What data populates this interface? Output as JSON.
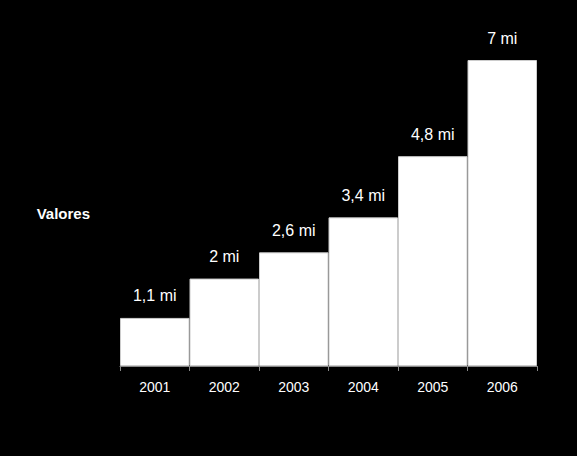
{
  "chart_data": {
    "type": "bar",
    "ylabel": "Valores",
    "categories": [
      "2001",
      "2002",
      "2003",
      "2004",
      "2005",
      "2006"
    ],
    "values": [
      1.1,
      2,
      2.6,
      3.4,
      4.8,
      7
    ],
    "value_labels": [
      "1,1 mi",
      "2 mi",
      "2,6 mi",
      "3,4 mi",
      "4,8 mi",
      "7 mi"
    ],
    "color": "#ffffff",
    "ylim": [
      0,
      7
    ],
    "grid": false,
    "data_labels": true,
    "tick_labels": "x"
  }
}
